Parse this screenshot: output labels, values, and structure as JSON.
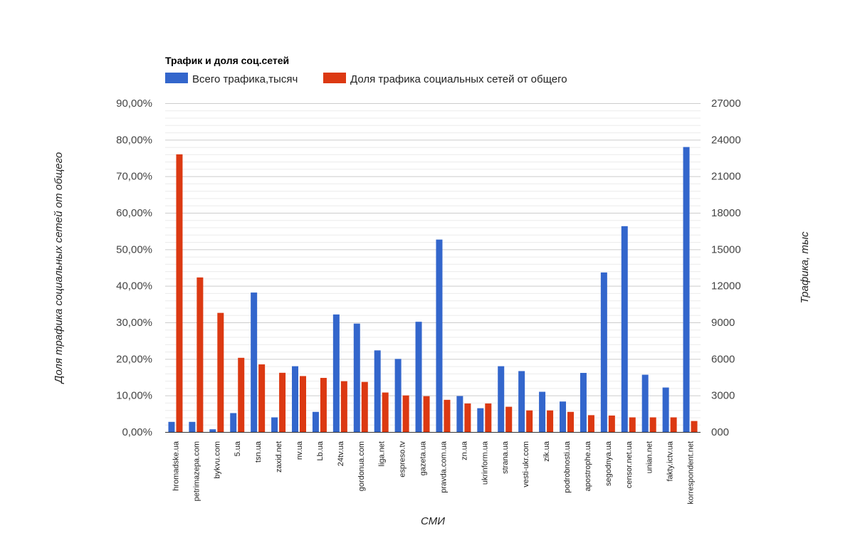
{
  "chart_data": {
    "type": "bar",
    "title": "Трафик и доля соц.сетей",
    "xlabel": "СМИ",
    "ylabel_left": "Доля трафика социальных сетей от общего",
    "ylabel_right": "Трафика, тыс",
    "legend_placement": "top-left",
    "grid": true,
    "left_axis": {
      "ylim": [
        0,
        90
      ],
      "ticks": [
        0,
        10,
        20,
        30,
        40,
        50,
        60,
        70,
        80,
        90
      ],
      "tick_labels": [
        "0,00%",
        "10,00%",
        "20,00%",
        "30,00%",
        "40,00%",
        "50,00%",
        "60,00%",
        "70,00%",
        "80,00%",
        "90,00%"
      ]
    },
    "right_axis": {
      "ylim": [
        0,
        27000
      ],
      "ticks": [
        0,
        3000,
        6000,
        9000,
        12000,
        15000,
        18000,
        21000,
        24000,
        27000
      ],
      "tick_labels": [
        "000",
        "3000",
        "6000",
        "9000",
        "12000",
        "15000",
        "18000",
        "21000",
        "24000",
        "27000"
      ]
    },
    "categories": [
      "hromadske.ua",
      "petrimazepa.com",
      "bykvu.com",
      "5.ua",
      "tsn.ua",
      "zaxid.net",
      "nv.ua",
      "Lb.ua",
      "24tv.ua",
      "gordonua.com",
      "liga.net",
      "espreso.tv",
      "gazeta.ua",
      "pravda.com.ua",
      "zn.ua",
      "ukrinform.ua",
      "strana.ua",
      "vesti-ukr.com",
      "zik.ua",
      "podrobnosti.ua",
      "apostrophe.ua",
      "segodnya.ua",
      "censor.net.ua",
      "unian.net",
      "fakty.ictv.ua",
      "korrespondent.net"
    ],
    "series": [
      {
        "name": "Всего трафика,тысяч",
        "axis": "right",
        "color": "#3366cc",
        "values": [
          830,
          830,
          220,
          1550,
          11450,
          1200,
          5400,
          1650,
          9650,
          8900,
          6700,
          6000,
          9050,
          15800,
          2950,
          1950,
          5400,
          5000,
          3300,
          2500,
          4850,
          13100,
          16900,
          4700,
          3650,
          23400
        ]
      },
      {
        "name": "Доля трафика социальных сетей от общего",
        "axis": "left",
        "color": "#dc3912",
        "values": [
          76.0,
          42.3,
          32.6,
          20.3,
          18.5,
          16.2,
          15.3,
          14.8,
          13.9,
          13.7,
          10.8,
          10.0,
          9.8,
          8.8,
          7.8,
          7.8,
          6.9,
          5.9,
          5.9,
          5.5,
          4.6,
          4.5,
          4.0,
          4.0,
          4.0,
          3.0
        ]
      }
    ]
  }
}
